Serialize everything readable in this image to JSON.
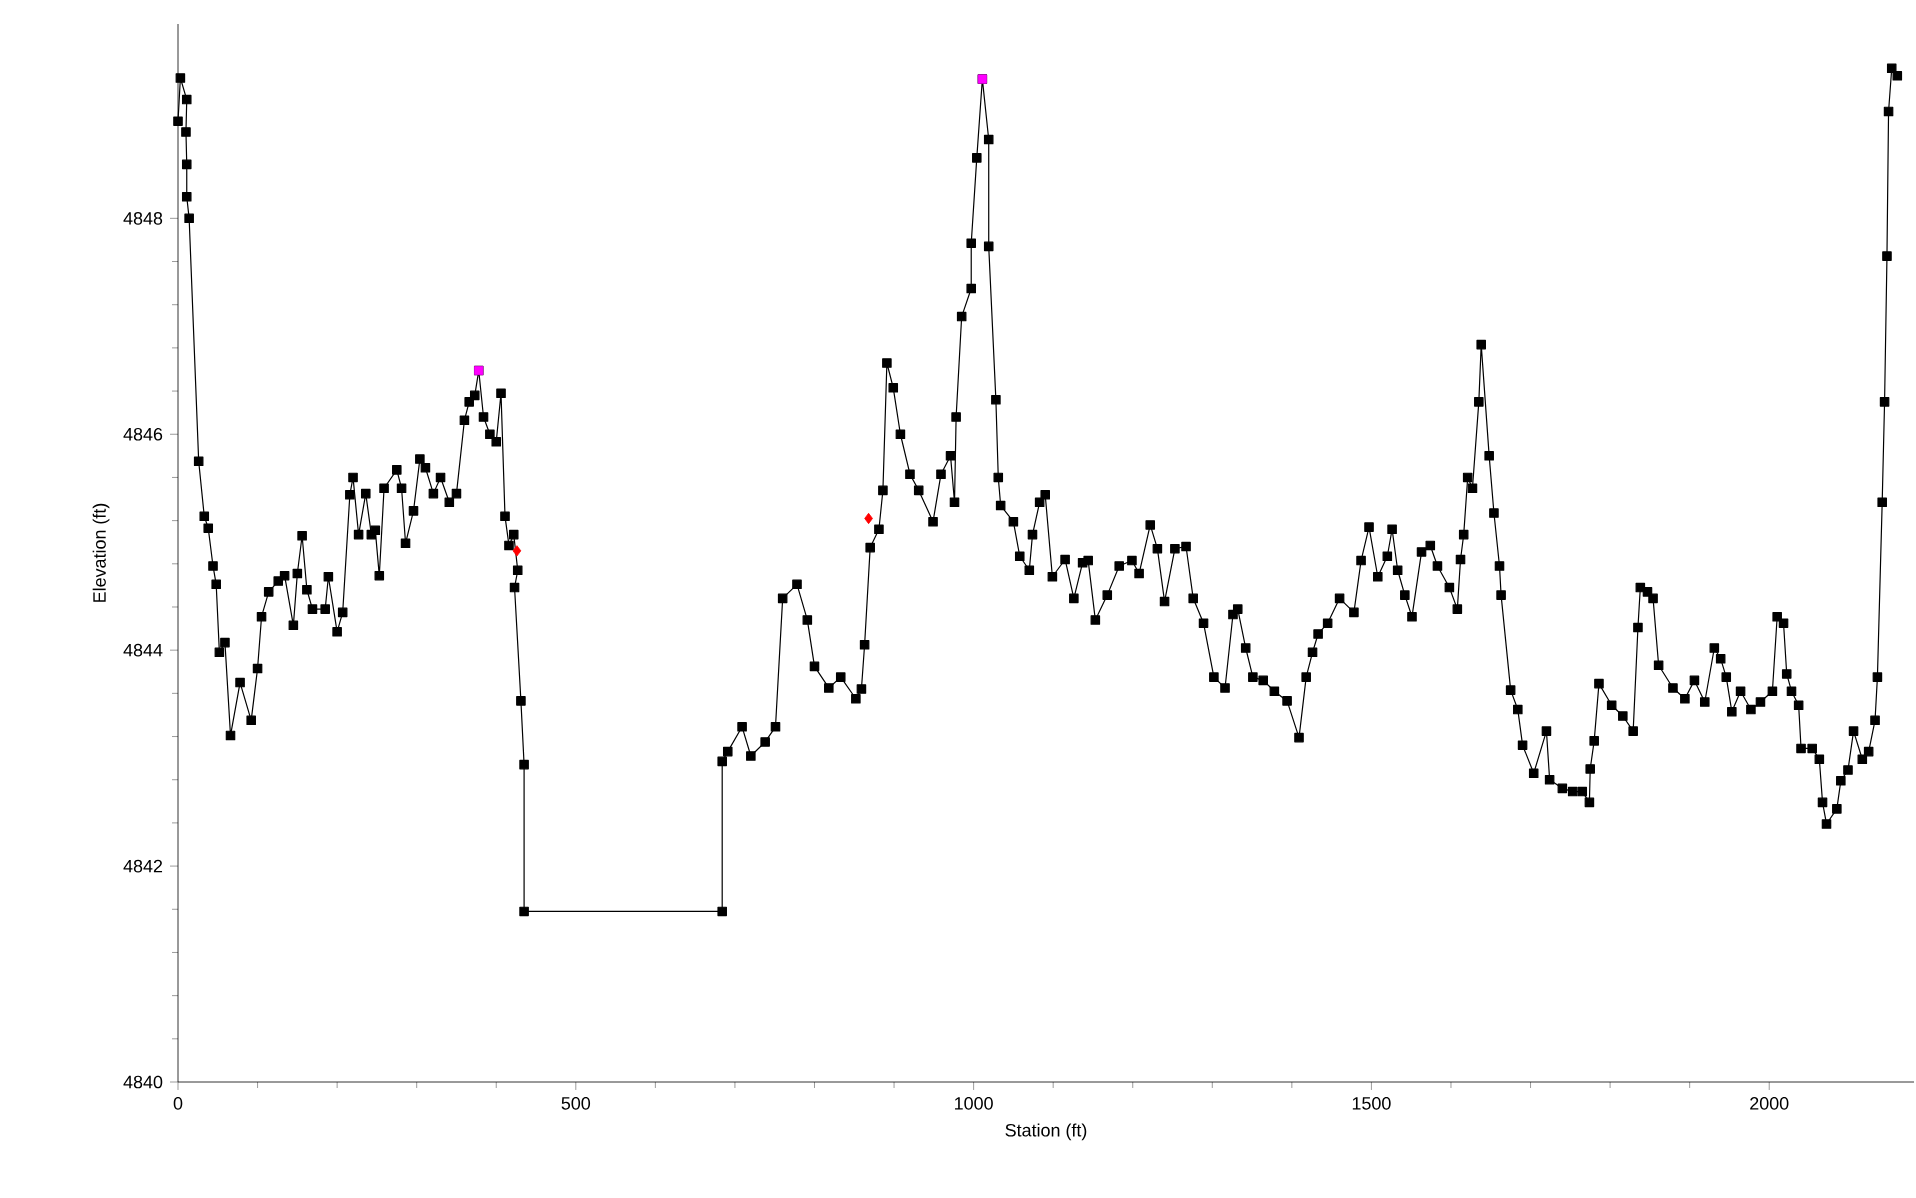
{
  "chart_data": {
    "type": "line",
    "xlabel": "Station (ft)",
    "ylabel": "Elevation (ft)",
    "xlim": [
      0,
      2182
    ],
    "ylim": [
      4840,
      4849.8
    ],
    "xticks": [
      0,
      500,
      1000,
      1500,
      2000
    ],
    "yticks": [
      4840,
      4842,
      4844,
      4846,
      4848
    ],
    "grid": false,
    "series": [
      {
        "color": "#000000",
        "marker": "square",
        "line_style": "solid",
        "x": [
          0,
          3,
          11,
          10,
          11,
          11,
          14,
          26,
          33,
          38,
          44,
          48,
          52,
          59,
          66,
          78,
          92,
          100,
          105,
          114,
          126,
          134,
          145,
          150,
          156,
          162,
          169,
          185,
          189,
          200,
          207,
          216,
          220,
          227,
          236,
          243,
          248,
          253,
          259,
          275,
          281,
          286,
          296,
          304,
          311,
          321,
          330,
          341,
          350,
          360,
          366,
          373,
          378,
          384,
          392,
          400,
          406,
          411,
          416,
          422,
          427,
          423,
          431,
          435,
          435,
          684,
          684,
          691,
          709,
          720,
          738,
          751,
          760,
          778,
          791,
          800,
          818,
          833,
          852,
          859,
          863,
          870,
          881,
          886,
          891,
          899,
          908,
          920,
          931,
          949,
          959,
          971,
          976,
          978,
          985,
          997,
          997,
          1004,
          1011,
          1019,
          1019,
          1028,
          1031,
          1034,
          1050,
          1058,
          1070,
          1074,
          1083,
          1090,
          1099,
          1115,
          1126,
          1137,
          1144,
          1153,
          1168,
          1183,
          1199,
          1208,
          1222,
          1231,
          1240,
          1253,
          1267,
          1276,
          1289,
          1302,
          1316,
          1326,
          1332,
          1342,
          1351,
          1364,
          1378,
          1394,
          1409,
          1418,
          1426,
          1433,
          1445,
          1460,
          1478,
          1487,
          1497,
          1508,
          1520,
          1526,
          1533,
          1542,
          1551,
          1563,
          1574,
          1583,
          1598,
          1608,
          1612,
          1616,
          1621,
          1627,
          1635,
          1638,
          1648,
          1654,
          1661,
          1663,
          1675,
          1684,
          1690,
          1704,
          1720,
          1724,
          1740,
          1753,
          1765,
          1774,
          1775,
          1780,
          1786,
          1802,
          1816,
          1829,
          1835,
          1838,
          1847,
          1854,
          1861,
          1879,
          1894,
          1906,
          1919,
          1931,
          1939,
          1946,
          1953,
          1964,
          1977,
          1989,
          2004,
          2010,
          2018,
          2022,
          2028,
          2037,
          2040,
          2054,
          2063,
          2067,
          2072,
          2085,
          2090,
          2099,
          2106,
          2117,
          2125,
          2133,
          2136,
          2142,
          2145,
          2148,
          2150,
          2154,
          2161
        ],
        "values": [
          4848.9,
          4849.3,
          4849.1,
          4848.8,
          4848.5,
          4848.2,
          4848.0,
          4845.75,
          4845.24,
          4845.13,
          4844.78,
          4844.61,
          4843.98,
          4844.07,
          4843.21,
          4843.7,
          4843.35,
          4843.83,
          4844.31,
          4844.54,
          4844.64,
          4844.69,
          4844.23,
          4844.71,
          4845.06,
          4844.56,
          4844.38,
          4844.38,
          4844.68,
          4844.17,
          4844.35,
          4845.44,
          4845.6,
          4845.07,
          4845.45,
          4845.07,
          4845.11,
          4844.69,
          4845.5,
          4845.67,
          4845.5,
          4844.99,
          4845.29,
          4845.77,
          4845.69,
          4845.45,
          4845.6,
          4845.37,
          4845.45,
          4846.13,
          4846.3,
          4846.36,
          4846.59,
          4846.16,
          4846.0,
          4845.93,
          4846.38,
          4845.24,
          4844.97,
          4845.07,
          4844.74,
          4844.58,
          4843.53,
          4842.94,
          4841.58,
          4841.58,
          4842.97,
          4843.06,
          4843.29,
          4843.02,
          4843.15,
          4843.29,
          4844.48,
          4844.61,
          4844.28,
          4843.85,
          4843.65,
          4843.75,
          4843.55,
          4843.64,
          4844.05,
          4844.95,
          4845.12,
          4845.48,
          4846.66,
          4846.43,
          4846.0,
          4845.63,
          4845.48,
          4845.19,
          4845.63,
          4845.8,
          4845.37,
          4846.16,
          4847.09,
          4847.35,
          4847.77,
          4848.56,
          4849.29,
          4848.73,
          4847.74,
          4846.32,
          4845.6,
          4845.34,
          4845.19,
          4844.87,
          4844.74,
          4845.07,
          4845.37,
          4845.44,
          4844.68,
          4844.84,
          4844.48,
          4844.81,
          4844.83,
          4844.28,
          4844.51,
          4844.78,
          4844.83,
          4844.71,
          4845.16,
          4844.94,
          4844.45,
          4844.94,
          4844.96,
          4844.48,
          4844.25,
          4843.75,
          4843.65,
          4844.33,
          4844.38,
          4844.02,
          4843.75,
          4843.72,
          4843.62,
          4843.53,
          4843.19,
          4843.75,
          4843.98,
          4844.15,
          4844.25,
          4844.48,
          4844.35,
          4844.83,
          4845.14,
          4844.68,
          4844.87,
          4845.12,
          4844.74,
          4844.51,
          4844.31,
          4844.91,
          4844.97,
          4844.78,
          4844.58,
          4844.38,
          4844.84,
          4845.07,
          4845.6,
          4845.5,
          4846.3,
          4846.83,
          4845.8,
          4845.27,
          4844.78,
          4844.51,
          4843.63,
          4843.45,
          4843.12,
          4842.86,
          4843.25,
          4842.8,
          4842.72,
          4842.69,
          4842.69,
          4842.59,
          4842.9,
          4843.16,
          4843.69,
          4843.49,
          4843.39,
          4843.25,
          4844.21,
          4844.58,
          4844.54,
          4844.48,
          4843.86,
          4843.65,
          4843.55,
          4843.72,
          4843.52,
          4844.02,
          4843.92,
          4843.75,
          4843.43,
          4843.62,
          4843.45,
          4843.52,
          4843.62,
          4844.31,
          4844.25,
          4843.78,
          4843.62,
          4843.49,
          4843.09,
          4843.09,
          4842.99,
          4842.59,
          4842.39,
          4842.53,
          4842.79,
          4842.89,
          4843.25,
          4842.99,
          4843.06,
          4843.35,
          4843.75,
          4845.37,
          4846.3,
          4847.65,
          4848.99,
          4849.39,
          4849.32
        ]
      },
      {
        "type": "scatter",
        "color": "#ff0000",
        "marker": "diamond",
        "x": [
          426,
          868
        ],
        "values": [
          4844.92,
          4845.22
        ]
      },
      {
        "type": "scatter",
        "color": "#ff00ff",
        "marker": "square",
        "x": [
          378,
          1011
        ],
        "values": [
          4846.59,
          4849.29
        ]
      }
    ]
  }
}
